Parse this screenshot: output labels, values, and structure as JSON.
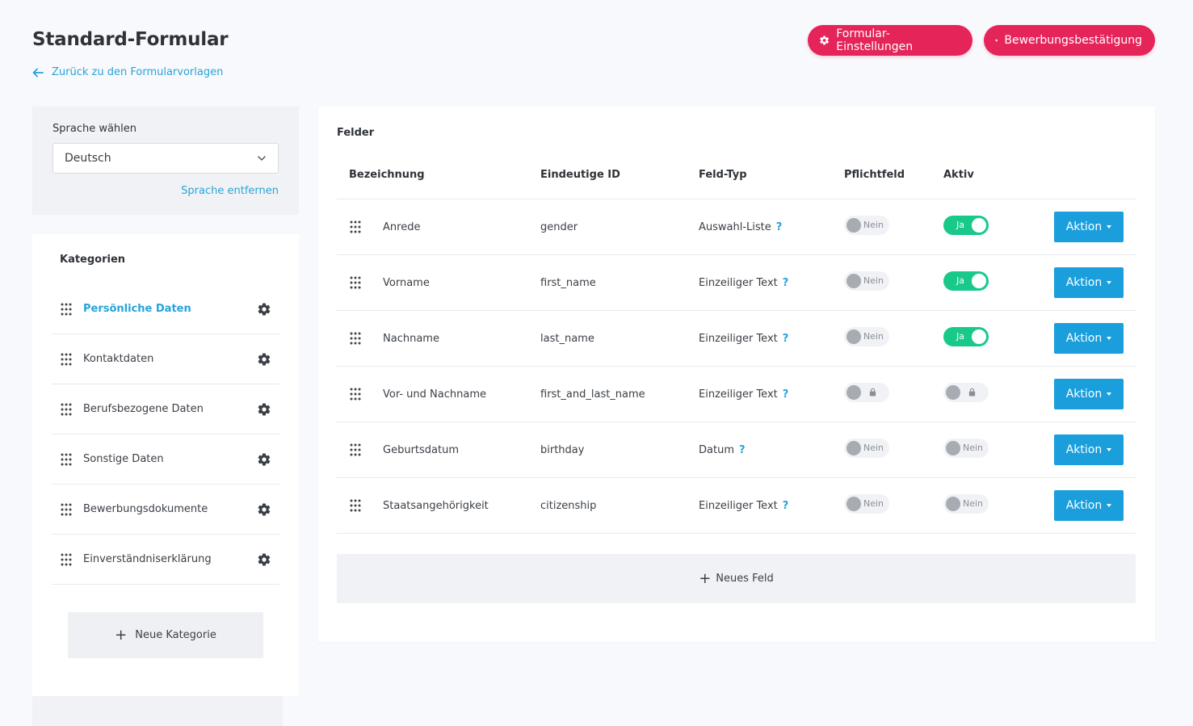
{
  "header": {
    "title": "Standard-Formular",
    "back_link": "Zurück zu den Formularvorlagen",
    "btn_form_settings": "Formular-Einstellungen",
    "btn_confirmation": "Bewerbungsbestätigung"
  },
  "language": {
    "label": "Sprache wählen",
    "selected": "Deutsch",
    "remove_link": "Sprache entfernen"
  },
  "categories": {
    "title": "Kategorien",
    "items": [
      {
        "label": "Persönliche Daten",
        "active": true
      },
      {
        "label": "Kontaktdaten"
      },
      {
        "label": "Berufsbezogene Daten"
      },
      {
        "label": "Sonstige Daten"
      },
      {
        "label": "Bewerbungsdokumente"
      },
      {
        "label": "Einverständniserklärung"
      }
    ],
    "new_button": "Neue Kategorie"
  },
  "fields": {
    "title": "Felder",
    "headers": {
      "name": "Bezeichnung",
      "id": "Eindeutige ID",
      "type": "Feld-Typ",
      "required": "Pflichtfeld",
      "active": "Aktiv"
    },
    "help_glyph": "?",
    "action_label": "Aktion",
    "rows": [
      {
        "name": "Anrede",
        "id": "gender",
        "type": "Auswahl-Liste",
        "required": "Nein",
        "active": "Ja"
      },
      {
        "name": "Vorname",
        "id": "first_name",
        "type": "Einzeiliger Text",
        "required": "Nein",
        "active": "Ja"
      },
      {
        "name": "Nachname",
        "id": "last_name",
        "type": "Einzeiliger Text",
        "required": "Nein",
        "active": "Ja"
      },
      {
        "name": "Vor- und Nachname",
        "id": "first_and_last_name",
        "type": "Einzeiliger Text",
        "required": "locked",
        "active": "locked"
      },
      {
        "name": "Geburtsdatum",
        "id": "birthday",
        "type": "Datum",
        "required": "Nein",
        "active": "Nein"
      },
      {
        "name": "Staatsangehörigkeit",
        "id": "citizenship",
        "type": "Einzeiliger Text",
        "required": "Nein",
        "active": "Nein"
      }
    ],
    "new_button": "Neues Feld"
  },
  "colors": {
    "primary_pink": "#e5245a",
    "link_blue": "#26a4d8",
    "action_blue": "#1a9fdc",
    "toggle_on": "#19c98a"
  }
}
